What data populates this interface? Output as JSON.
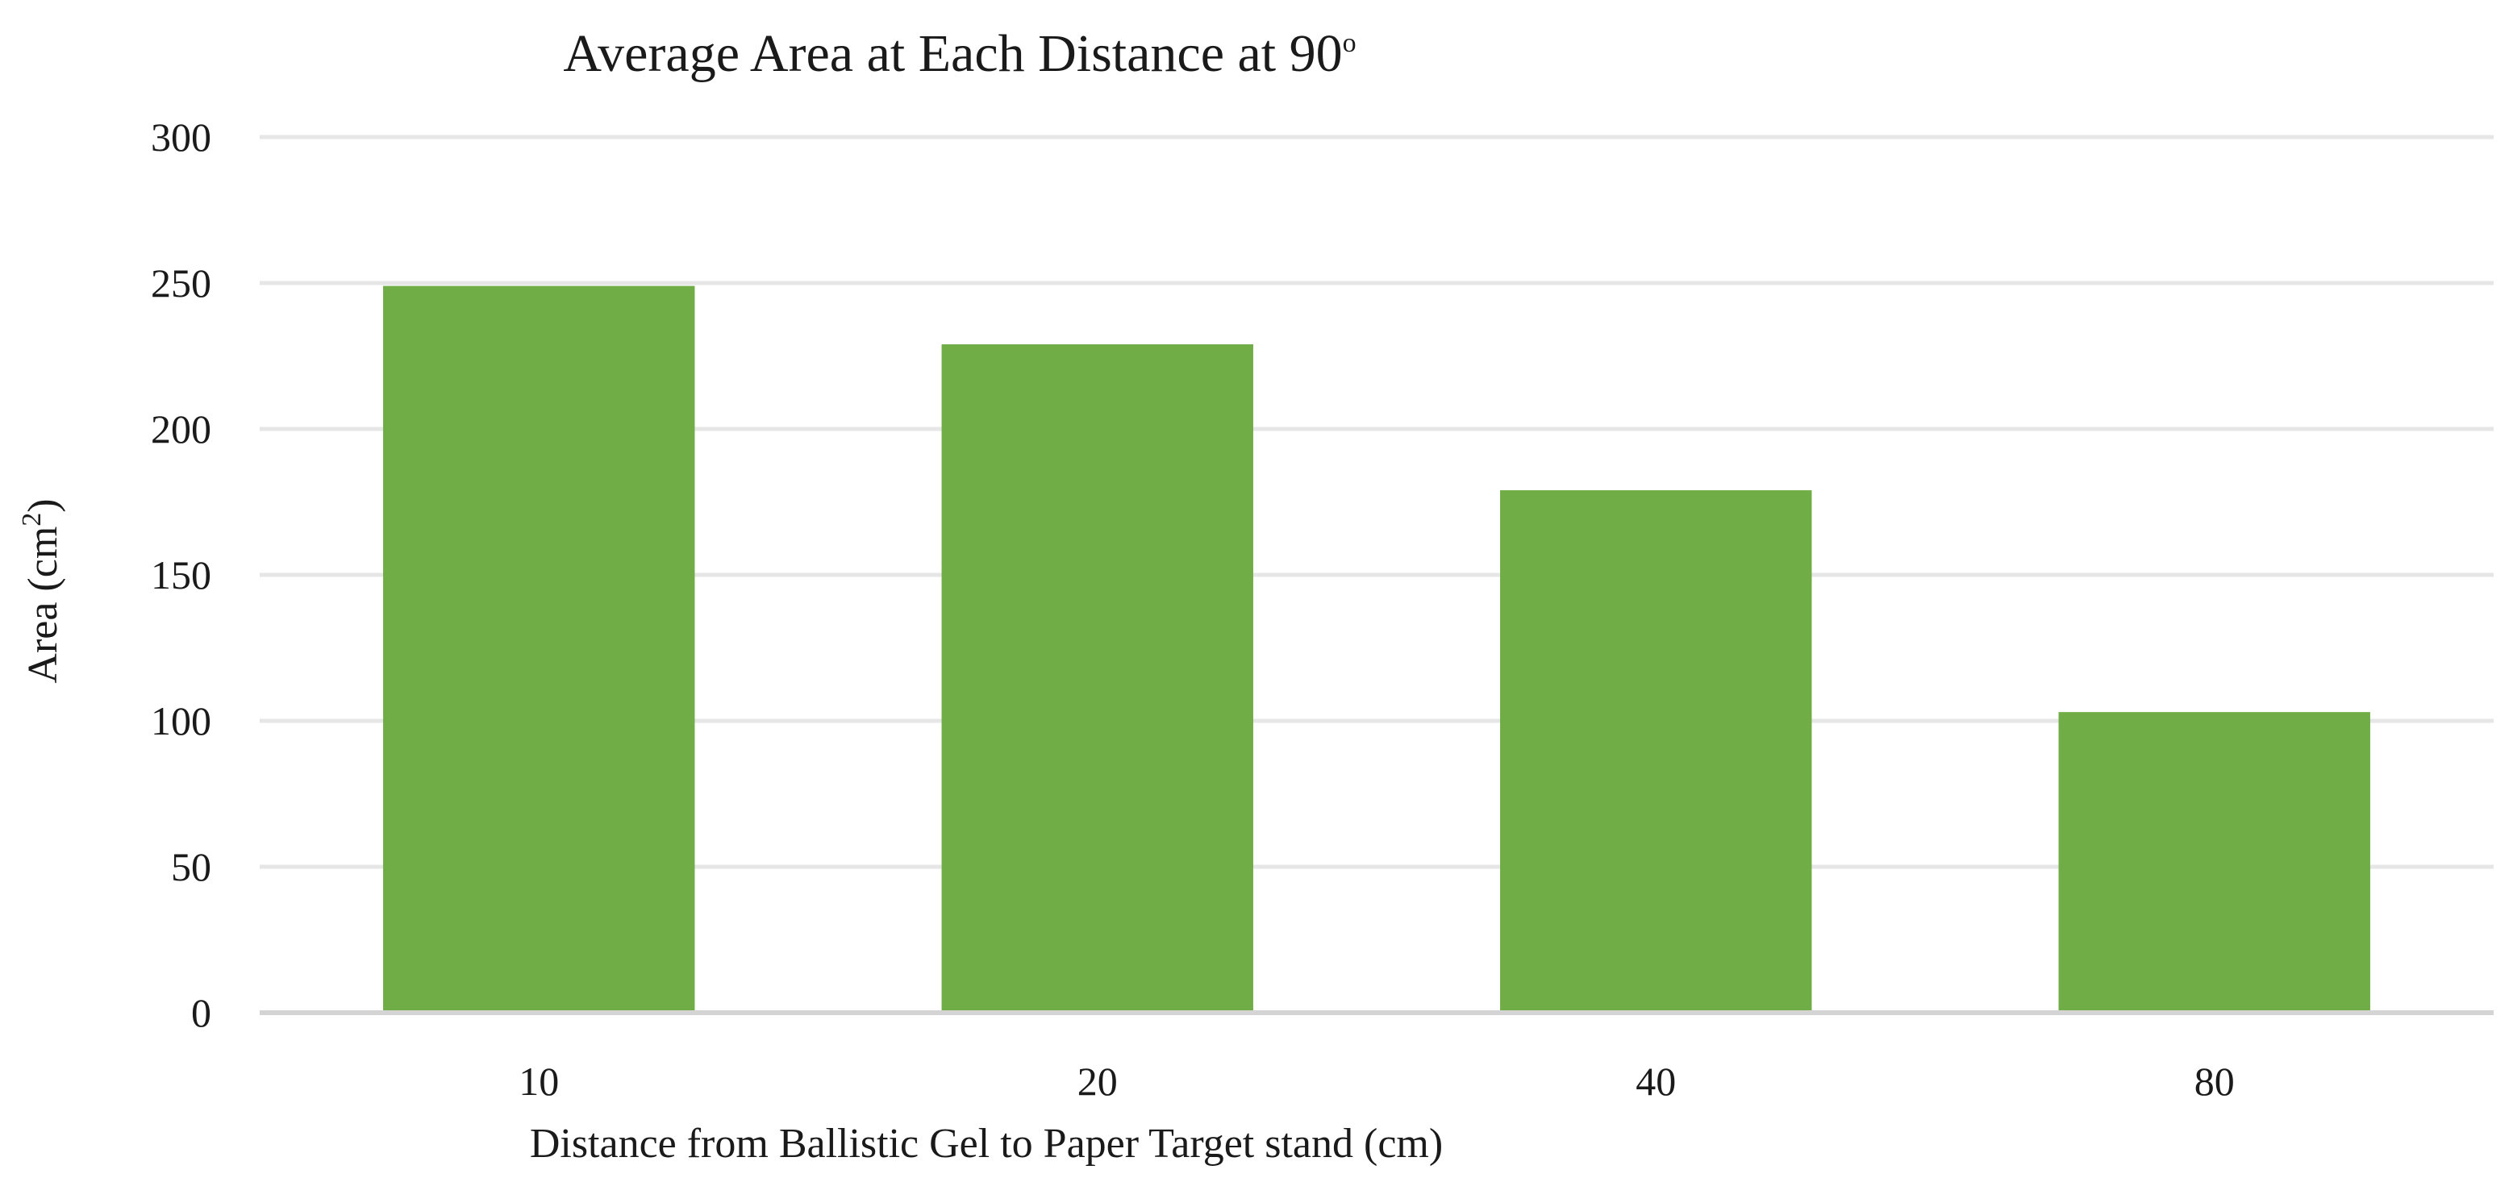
{
  "chart_data": {
    "type": "bar",
    "title": "Average Area at Each Distance at 90",
    "title_superscript": "o",
    "xlabel": "Distance from Ballistic Gel to Paper Target stand (cm)",
    "ylabel": "Area (cm",
    "ylabel_superscript": "2",
    "ylabel_suffix": ")",
    "categories": [
      "10",
      "20",
      "40",
      "80"
    ],
    "values": [
      249,
      229,
      179,
      103
    ],
    "ylim": [
      0,
      300
    ],
    "yticks": [
      0,
      50,
      100,
      150,
      200,
      250,
      300
    ],
    "grid": true,
    "legend": "none",
    "colors": {
      "bar": "#70ad47",
      "grid": "#e6e6e6",
      "axis": "#d4d4d4"
    }
  }
}
